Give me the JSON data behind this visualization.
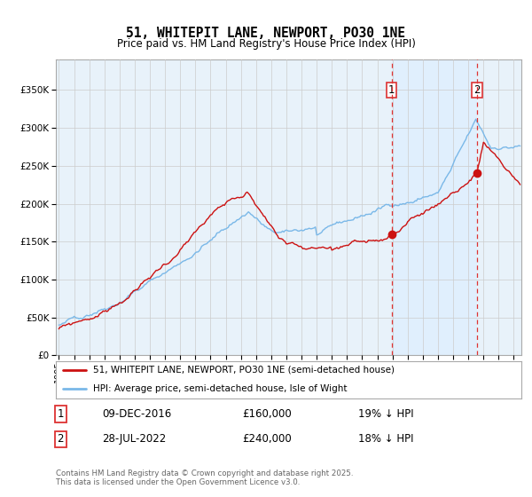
{
  "title": "51, WHITEPIT LANE, NEWPORT, PO30 1NE",
  "subtitle": "Price paid vs. HM Land Registry's House Price Index (HPI)",
  "ylim": [
    0,
    370000
  ],
  "yticks": [
    0,
    50000,
    100000,
    150000,
    200000,
    250000,
    300000,
    350000
  ],
  "xlim_start": 1995.0,
  "xlim_end": 2025.5,
  "purchase1_date": 2016.94,
  "purchase1_price": 160000,
  "purchase2_date": 2022.57,
  "purchase2_price": 240000,
  "hpi_color": "#7ab8e8",
  "price_color": "#cc1111",
  "vline_color": "#dd3333",
  "shade_color": "#ddeeff",
  "grid_color": "#cccccc",
  "background_color": "#e8f2fa",
  "legend_entry1": "51, WHITEPIT LANE, NEWPORT, PO30 1NE (semi-detached house)",
  "legend_entry2": "HPI: Average price, semi-detached house, Isle of Wight",
  "annotation1_date": "09-DEC-2016",
  "annotation1_price": "£160,000",
  "annotation1_pct": "19% ↓ HPI",
  "annotation2_date": "28-JUL-2022",
  "annotation2_price": "£240,000",
  "annotation2_pct": "18% ↓ HPI",
  "footer": "Contains HM Land Registry data © Crown copyright and database right 2025.\nThis data is licensed under the Open Government Licence v3.0."
}
